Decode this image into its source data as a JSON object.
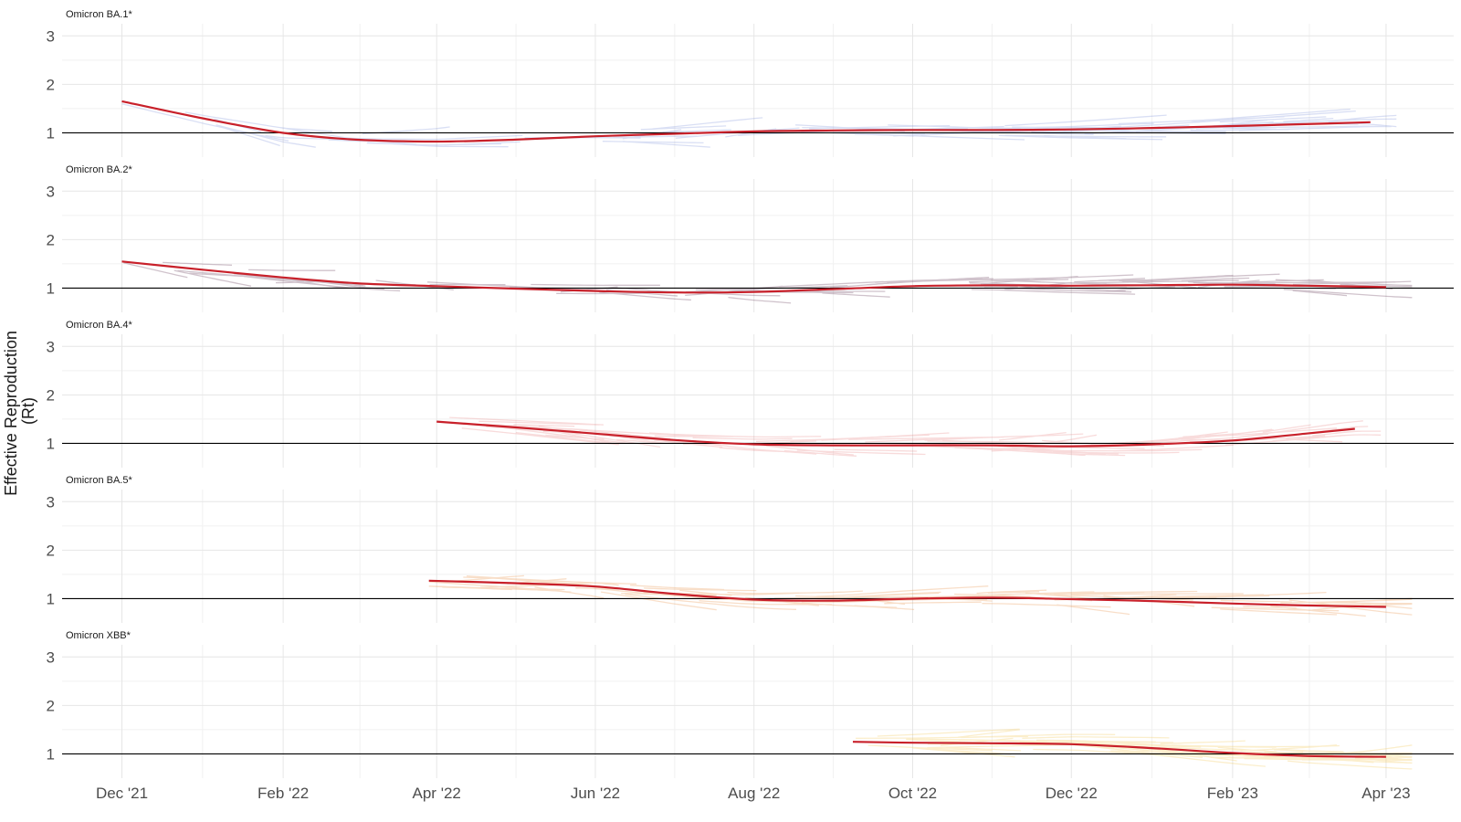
{
  "chart_data": {
    "type": "line",
    "ylabel_line1": "Effective Reproduction",
    "ylabel_line2": "(Rt)",
    "x_ticks": [
      "Dec '21",
      "Feb '22",
      "Apr '22",
      "Jun '22",
      "Aug '22",
      "Oct '22",
      "Dec '22",
      "Feb '23",
      "Apr '23"
    ],
    "x_tick_dates": [
      "2021-12-01",
      "2022-02-01",
      "2022-04-01",
      "2022-06-01",
      "2022-08-01",
      "2022-10-01",
      "2022-12-01",
      "2023-02-01",
      "2023-04-01"
    ],
    "xlim": [
      "2021-11-08",
      "2023-04-27"
    ],
    "ylim": [
      0.5,
      3.25
    ],
    "y_ticks": [
      1,
      2,
      3
    ],
    "reference_line": 1,
    "grid": true,
    "panels": [
      {
        "title": "Omicron BA.1*",
        "color": "#7b8fd9",
        "trend": {
          "dates": [
            "2021-12-01",
            "2022-01-01",
            "2022-02-01",
            "2022-03-01",
            "2022-04-01",
            "2022-05-01",
            "2022-06-01",
            "2022-07-01",
            "2022-08-01",
            "2022-09-01",
            "2022-10-01",
            "2022-11-01",
            "2022-12-01",
            "2023-01-01",
            "2023-02-01",
            "2023-03-01",
            "2023-03-26"
          ],
          "values": [
            1.65,
            1.3,
            1.0,
            0.86,
            0.82,
            0.86,
            0.93,
            0.98,
            1.03,
            1.05,
            1.06,
            1.06,
            1.07,
            1.1,
            1.14,
            1.18,
            1.22
          ]
        }
      },
      {
        "title": "Omicron BA.2*",
        "color": "#5a2a4a",
        "trend": {
          "dates": [
            "2021-12-01",
            "2022-01-01",
            "2022-02-01",
            "2022-03-01",
            "2022-04-01",
            "2022-05-01",
            "2022-06-01",
            "2022-07-01",
            "2022-08-01",
            "2022-09-01",
            "2022-10-01",
            "2022-11-01",
            "2022-12-01",
            "2023-01-01",
            "2023-02-01",
            "2023-03-01",
            "2023-04-01"
          ],
          "values": [
            1.55,
            1.38,
            1.22,
            1.1,
            1.04,
            0.99,
            0.94,
            0.91,
            0.92,
            0.98,
            1.04,
            1.06,
            1.05,
            1.06,
            1.07,
            1.05,
            1.02
          ]
        }
      },
      {
        "title": "Omicron BA.4*",
        "color": "#e88080",
        "trend": {
          "dates": [
            "2022-04-01",
            "2022-05-01",
            "2022-06-01",
            "2022-07-01",
            "2022-08-01",
            "2022-09-01",
            "2022-10-01",
            "2022-11-01",
            "2022-12-01",
            "2023-01-01",
            "2023-02-01",
            "2023-03-01",
            "2023-03-20"
          ],
          "values": [
            1.45,
            1.33,
            1.2,
            1.07,
            0.98,
            0.96,
            0.96,
            0.96,
            0.94,
            0.98,
            1.06,
            1.2,
            1.3
          ]
        }
      },
      {
        "title": "Omicron BA.5*",
        "color": "#e88a3c",
        "trend": {
          "dates": [
            "2022-03-29",
            "2022-05-01",
            "2022-06-01",
            "2022-07-01",
            "2022-08-01",
            "2022-09-01",
            "2022-10-01",
            "2022-11-01",
            "2022-12-01",
            "2023-01-01",
            "2023-02-01",
            "2023-03-01",
            "2023-04-01"
          ],
          "values": [
            1.37,
            1.32,
            1.25,
            1.1,
            0.98,
            0.96,
            1.0,
            1.02,
            0.99,
            0.95,
            0.9,
            0.86,
            0.83
          ]
        }
      },
      {
        "title": "Omicron XBB*",
        "color": "#f2c64d",
        "trend": {
          "dates": [
            "2022-09-08",
            "2022-10-01",
            "2022-11-01",
            "2022-12-01",
            "2023-01-01",
            "2023-02-01",
            "2023-03-01",
            "2023-04-01"
          ],
          "values": [
            1.25,
            1.23,
            1.22,
            1.2,
            1.12,
            1.02,
            0.96,
            0.94
          ]
        }
      }
    ],
    "trend_color": "#c8202a",
    "reference_color": "#000000"
  }
}
